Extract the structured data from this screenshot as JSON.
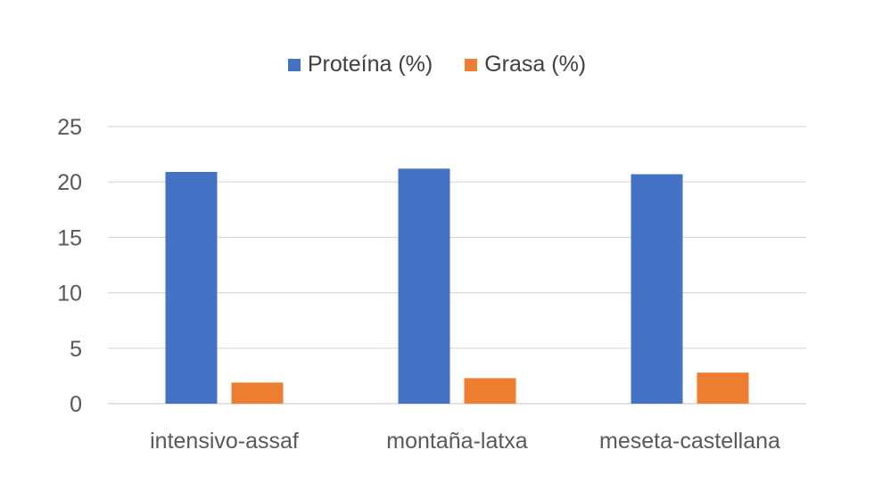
{
  "chart_data": {
    "type": "bar",
    "categories": [
      "intensivo-assaf",
      "montaña-latxa",
      "meseta-castellana"
    ],
    "series": [
      {
        "name": "Proteína (%)",
        "values": [
          20.9,
          21.2,
          20.7
        ],
        "color": "#4472C4"
      },
      {
        "name": "Grasa (%)",
        "values": [
          1.9,
          2.3,
          2.8
        ],
        "color": "#ED7D31"
      }
    ],
    "title": "",
    "xlabel": "",
    "ylabel": "",
    "ylim": [
      0,
      25
    ],
    "yticks": [
      0,
      5,
      10,
      15,
      20,
      25
    ],
    "grid": true,
    "legend_position": "top"
  }
}
